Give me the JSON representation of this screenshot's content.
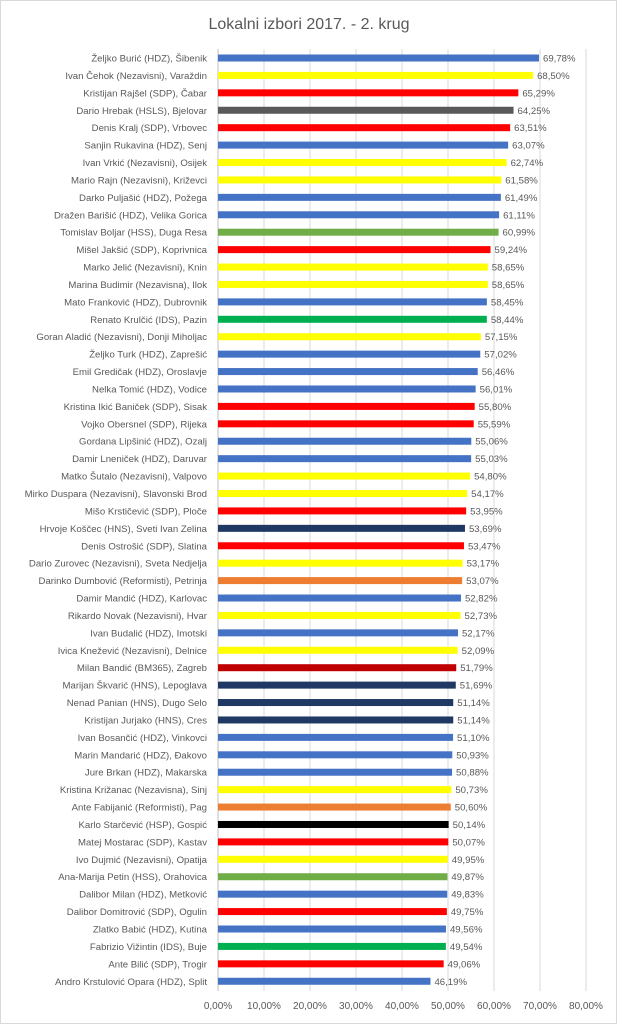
{
  "chart_data": {
    "type": "bar",
    "orientation": "horizontal",
    "title": "Lokalni izbori 2017. - 2. krug",
    "xlabel": "",
    "ylabel": "",
    "xlim": [
      0,
      80
    ],
    "x_ticks": [
      "0,00%",
      "10,00%",
      "20,00%",
      "30,00%",
      "40,00%",
      "50,00%",
      "60,00%",
      "70,00%",
      "80,00%"
    ],
    "grid": true,
    "legend": "none",
    "party_colors": {
      "HDZ": "#4472c4",
      "Nezavisni": "#ffff00",
      "SDP": "#ff0000",
      "HSLS": "#595959",
      "HSS": "#70ad47",
      "IDS": "#00b050",
      "HNS": "#1f3864",
      "Reformisti": "#ed7d31",
      "BM365": "#c00000",
      "HSP": "#000000"
    },
    "categories": [
      "Željko Burić (HDZ), Šibenik",
      "Ivan Čehok (Nezavisni), Varaždin",
      "Kristijan Rajšel (SDP), Čabar",
      "Dario Hrebak (HSLS), Bjelovar",
      "Denis Kralj (SDP), Vrbovec",
      "Sanjin Rukavina (HDZ), Senj",
      "Ivan Vrkić (Nezavisni), Osijek",
      "Mario Rajn (Nezavisni), Križevci",
      "Darko Puljašić (HDZ), Požega",
      "Dražen Barišić (HDZ), Velika Gorica",
      "Tomislav Boljar (HSS), Duga Resa",
      "Mišel Jakšić (SDP), Koprivnica",
      "Marko Jelić (Nezavisni), Knin",
      "Marina Budimir (Nezavisna), Ilok",
      "Mato Franković (HDZ), Dubrovnik",
      "Renato Krulčić (IDS), Pazin",
      "Goran Aladić (Nezavisni), Donji Miholjac",
      "Željko Turk (HDZ), Zaprešić",
      "Emil Gredičak (HDZ), Oroslavje",
      "Nelka Tomić (HDZ), Vodice",
      "Kristina Ikić Baniček (SDP), Sisak",
      "Vojko Obersnel (SDP), Rijeka",
      "Gordana Lipšinić (HDZ), Ozalj",
      "Damir Lneniček (HDZ), Daruvar",
      "Matko Šutalo (Nezavisni), Valpovo",
      "Mirko Duspara (Nezavisni), Slavonski Brod",
      "Mišo Krstičević (SDP), Ploče",
      "Hrvoje Koščec (HNS), Sveti Ivan Zelina",
      "Denis Ostrošić (SDP), Slatina",
      "Dario Zurovec (Nezavisni), Sveta Nedjelja",
      "Darinko Dumbović (Reformisti), Petrinja",
      "Damir Mandić (HDZ), Karlovac",
      "Rikardo Novak (Nezavisni), Hvar",
      "Ivan Budalić (HDZ), Imotski",
      "Ivica Knežević (Nezavisni), Delnice",
      "Milan Bandić (BM365), Zagreb",
      "Marijan Škvarić (HNS), Lepoglava",
      "Nenad Panian (HNS), Dugo Selo",
      "Kristijan Jurjako (HNS), Cres",
      "Ivan Bosančić (HDZ), Vinkovci",
      "Marin Mandarić (HDZ), Đakovo",
      "Jure Brkan (HDZ), Makarska",
      "Kristina Križanac (Nezavisna), Sinj",
      "Ante Fabijanić (Reformisti), Pag",
      "Karlo Starčević (HSP), Gospić",
      "Matej Mostarac (SDP), Kastav",
      "Ivo Dujmić (Nezavisni), Opatija",
      "Ana-Marija Petin (HSS), Orahovica",
      "Dalibor Milan (HDZ), Metković",
      "Dalibor Domitrović (SDP), Ogulin",
      "Zlatko Babić (HDZ), Kutina",
      "Fabrizio Vižintin (IDS), Buje",
      "Ante Bilić (SDP), Trogir",
      "Andro Krstulović Opara (HDZ), Split"
    ],
    "parties": [
      "HDZ",
      "Nezavisni",
      "SDP",
      "HSLS",
      "SDP",
      "HDZ",
      "Nezavisni",
      "Nezavisni",
      "HDZ",
      "HDZ",
      "HSS",
      "SDP",
      "Nezavisni",
      "Nezavisni",
      "HDZ",
      "IDS",
      "Nezavisni",
      "HDZ",
      "HDZ",
      "HDZ",
      "SDP",
      "SDP",
      "HDZ",
      "HDZ",
      "Nezavisni",
      "Nezavisni",
      "SDP",
      "HNS",
      "SDP",
      "Nezavisni",
      "Reformisti",
      "HDZ",
      "Nezavisni",
      "HDZ",
      "Nezavisni",
      "BM365",
      "HNS",
      "HNS",
      "HNS",
      "HDZ",
      "HDZ",
      "HDZ",
      "Nezavisni",
      "Reformisti",
      "HSP",
      "SDP",
      "Nezavisni",
      "HSS",
      "HDZ",
      "SDP",
      "HDZ",
      "IDS",
      "SDP",
      "HDZ"
    ],
    "values": [
      69.78,
      68.5,
      65.29,
      64.25,
      63.51,
      63.07,
      62.74,
      61.58,
      61.49,
      61.11,
      60.99,
      59.24,
      58.65,
      58.65,
      58.45,
      58.44,
      57.15,
      57.02,
      56.46,
      56.01,
      55.8,
      55.59,
      55.06,
      55.03,
      54.8,
      54.17,
      53.95,
      53.69,
      53.47,
      53.17,
      53.07,
      52.82,
      52.73,
      52.17,
      52.09,
      51.79,
      51.69,
      51.14,
      51.14,
      51.1,
      50.93,
      50.88,
      50.73,
      50.6,
      50.14,
      50.07,
      49.95,
      49.87,
      49.83,
      49.75,
      49.56,
      49.54,
      49.06,
      46.19
    ],
    "value_labels": [
      "69,78%",
      "68,50%",
      "65,29%",
      "64,25%",
      "63,51%",
      "63,07%",
      "62,74%",
      "61,58%",
      "61,49%",
      "61,11%",
      "60,99%",
      "59,24%",
      "58,65%",
      "58,65%",
      "58,45%",
      "58,44%",
      "57,15%",
      "57,02%",
      "56,46%",
      "56,01%",
      "55,80%",
      "55,59%",
      "55,06%",
      "55,03%",
      "54,80%",
      "54,17%",
      "53,95%",
      "53,69%",
      "53,47%",
      "53,17%",
      "53,07%",
      "52,82%",
      "52,73%",
      "52,17%",
      "52,09%",
      "51,79%",
      "51,69%",
      "51,14%",
      "51,14%",
      "51,10%",
      "50,93%",
      "50,88%",
      "50,73%",
      "50,60%",
      "50,14%",
      "50,07%",
      "49,95%",
      "49,87%",
      "49,83%",
      "49,75%",
      "49,56%",
      "49,54%",
      "49,06%",
      "46,19%"
    ]
  }
}
